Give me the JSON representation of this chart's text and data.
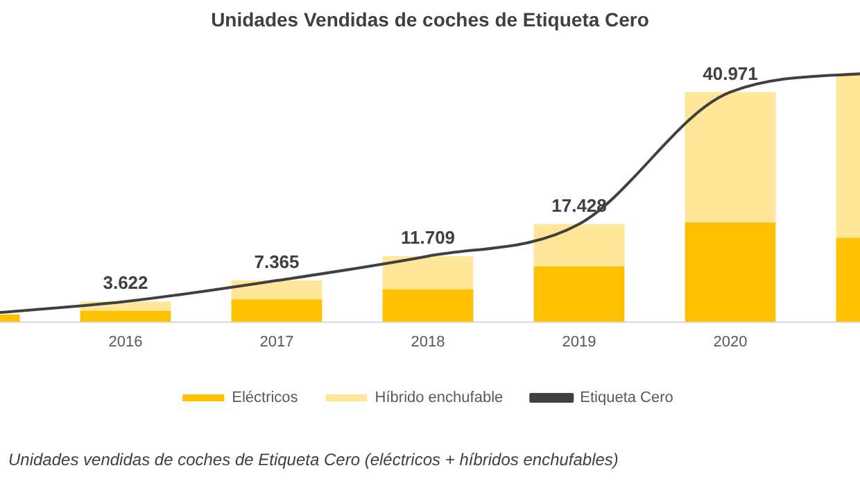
{
  "chart_data": {
    "type": "bar",
    "title": "Unidades Vendidas de coches de Etiqueta Cero",
    "annotations": [
      "Unidades vendidas de coches de Etiqueta Cero (eléctricos + híbridos enchufables)"
    ],
    "categories": [
      null,
      "2016",
      "2017",
      "2018",
      "2019",
      "2020",
      null
    ],
    "stacked": true,
    "tick_labels": "x",
    "grid": false,
    "legend": "bottom",
    "marker": "none",
    "series": [
      {
        "name": "Eléctricos",
        "color": "#ffc000",
        "values": [
          1300,
          2000,
          4000,
          5800,
          9900,
          17700,
          15000
        ]
      },
      {
        "name": "Híbrido enchufable",
        "color": "#ffe699",
        "values": [
          null,
          1622,
          3365,
          5909,
          7528,
          23271,
          29000
        ]
      },
      {
        "name": "Etiqueta Cero",
        "type": "line",
        "color": "#404040",
        "values": [
          1300,
          3622,
          7365,
          11709,
          17428,
          40971,
          44500
        ],
        "value_labels": [
          null,
          "3.622",
          "7.365",
          "11.709",
          "17.428",
          "40.971",
          null
        ]
      }
    ]
  }
}
